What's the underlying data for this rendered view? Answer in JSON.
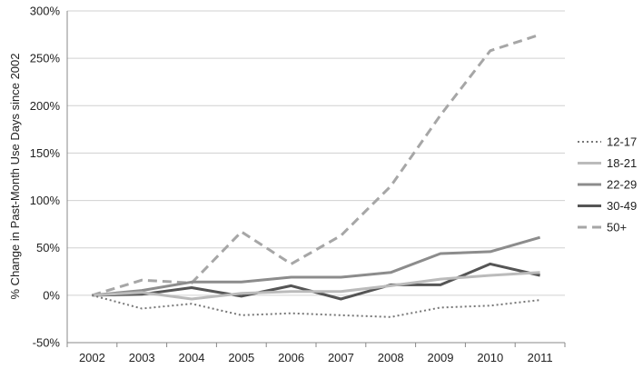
{
  "chart_data": {
    "type": "line",
    "title": "",
    "xlabel": "",
    "ylabel": "% Change in Past-Month Use Days since 2002",
    "x": [
      "2002",
      "2003",
      "2004",
      "2005",
      "2006",
      "2007",
      "2008",
      "2009",
      "2010",
      "2011"
    ],
    "ylim": [
      -50,
      300
    ],
    "yticks": [
      -50,
      0,
      50,
      100,
      150,
      200,
      250,
      300
    ],
    "ytick_labels": [
      "-50%",
      "0%",
      "50%",
      "100%",
      "150%",
      "200%",
      "250%",
      "300%"
    ],
    "grid": "horizontal",
    "legend_position": "right",
    "series": [
      {
        "name": "12-17",
        "style": "dotted",
        "color": "#777777",
        "values": [
          0,
          -14,
          -9,
          -21,
          -19,
          -21,
          -23,
          -13,
          -11,
          -5
        ]
      },
      {
        "name": "18-21",
        "style": "solid",
        "color": "#bbbbbb",
        "values": [
          0,
          3,
          -4,
          2,
          4,
          4,
          10,
          17,
          21,
          24
        ]
      },
      {
        "name": "22-29",
        "style": "solid",
        "color": "#8c8c8c",
        "values": [
          0,
          5,
          14,
          14,
          19,
          19,
          24,
          44,
          46,
          61
        ]
      },
      {
        "name": "30-49",
        "style": "solid",
        "color": "#555555",
        "values": [
          0,
          1,
          8,
          -1,
          10,
          -4,
          11,
          11,
          33,
          21
        ]
      },
      {
        "name": "50+",
        "style": "dashed",
        "color": "#a6a6a6",
        "values": [
          0,
          16,
          13,
          67,
          33,
          63,
          115,
          190,
          258,
          275
        ]
      }
    ]
  }
}
